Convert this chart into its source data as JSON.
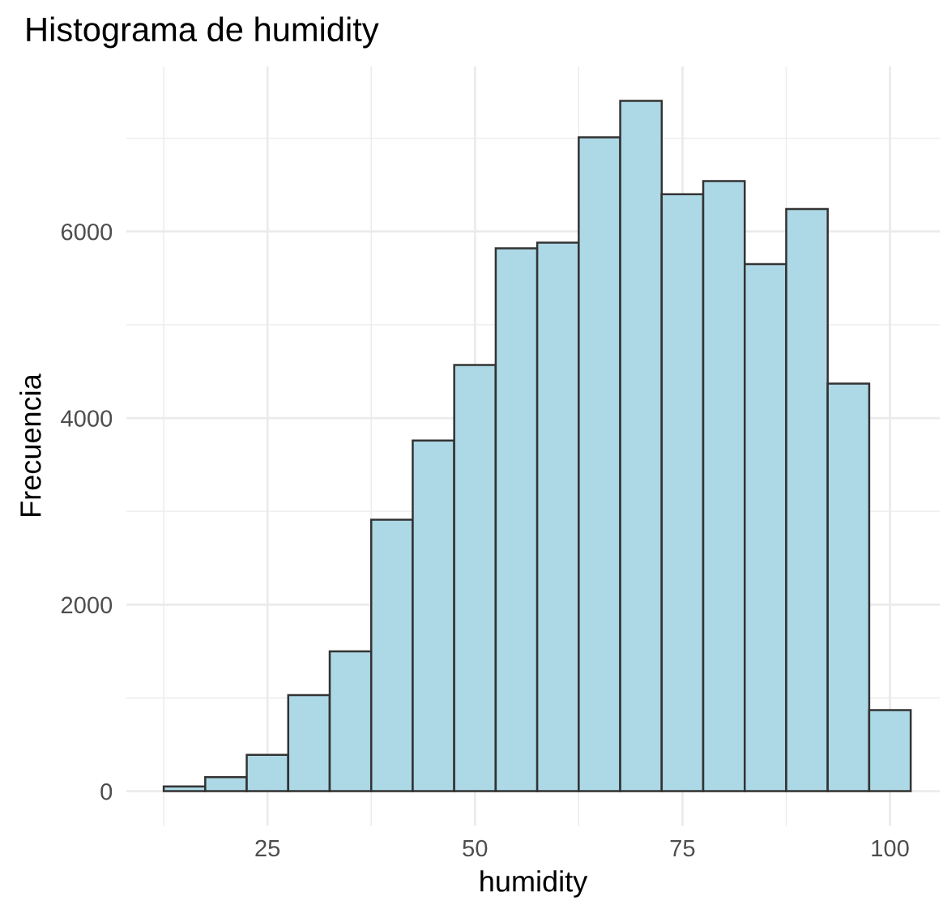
{
  "chart_data": {
    "type": "histogram",
    "title": "Histograma de humidity",
    "xlabel": "humidity",
    "ylabel": "Frecuencia",
    "bins": [
      12.5,
      17.5,
      22.5,
      27.5,
      32.5,
      37.5,
      42.5,
      47.5,
      52.5,
      57.5,
      62.5,
      67.5,
      72.5,
      77.5,
      82.5,
      87.5,
      92.5,
      97.5,
      102.5
    ],
    "values": [
      50,
      150,
      390,
      1030,
      1500,
      2910,
      3760,
      4570,
      5820,
      5880,
      7010,
      7400,
      6400,
      6540,
      5650,
      6240,
      4370,
      870
    ],
    "color": "#add8e6",
    "xlim": [
      8,
      106
    ],
    "xticks": [
      25,
      50,
      75,
      100
    ],
    "ylim": [
      -370,
      7770
    ],
    "yticks": [
      0,
      2000,
      4000,
      6000
    ],
    "grid": true
  }
}
